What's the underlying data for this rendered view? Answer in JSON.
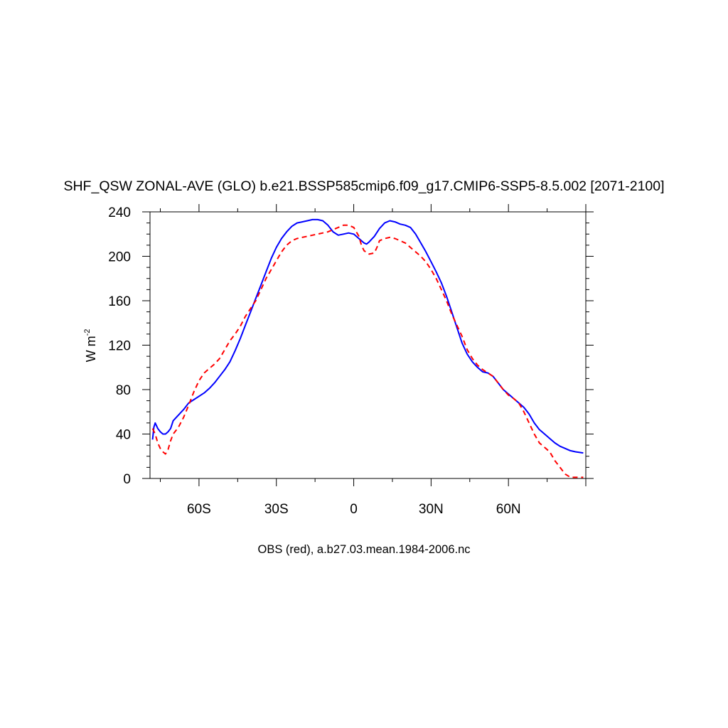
{
  "chart_data": {
    "type": "line",
    "title": "SHF_QSW ZONAL-AVE (GLO) b.e21.BSSP585cmip6.f09_g17.CMIP6-SSP5-8.5.002 [2071-2100]",
    "xlabel": "OBS (red), a.b27.03.mean.1984-2006.nc",
    "ylabel": "W m",
    "ylabel_superscript": "-2",
    "xlim": [
      -79,
      90
    ],
    "ylim": [
      0,
      240
    ],
    "x_ticks": [
      {
        "value": -60,
        "label": "60S"
      },
      {
        "value": -30,
        "label": "30S"
      },
      {
        "value": 0,
        "label": "0"
      },
      {
        "value": 30,
        "label": "30N"
      },
      {
        "value": 60,
        "label": "60N"
      }
    ],
    "y_ticks": [
      0,
      40,
      80,
      120,
      160,
      200,
      240
    ],
    "grid": false,
    "series": [
      {
        "color": "#0000ff",
        "dash": "solid",
        "points": [
          [
            -78,
            35
          ],
          [
            -77.5,
            46
          ],
          [
            -77,
            50
          ],
          [
            -76,
            45
          ],
          [
            -75,
            42
          ],
          [
            -74,
            40
          ],
          [
            -73,
            40
          ],
          [
            -72,
            42
          ],
          [
            -71,
            45
          ],
          [
            -70,
            52
          ],
          [
            -68,
            57
          ],
          [
            -66,
            62
          ],
          [
            -64,
            68
          ],
          [
            -62,
            71
          ],
          [
            -60,
            74
          ],
          [
            -58,
            77
          ],
          [
            -56,
            81
          ],
          [
            -54,
            86
          ],
          [
            -52,
            92
          ],
          [
            -50,
            98
          ],
          [
            -48,
            105
          ],
          [
            -46,
            115
          ],
          [
            -44,
            126
          ],
          [
            -42,
            138
          ],
          [
            -40,
            150
          ],
          [
            -38,
            162
          ],
          [
            -36,
            174
          ],
          [
            -34,
            186
          ],
          [
            -32,
            198
          ],
          [
            -30,
            208
          ],
          [
            -28,
            216
          ],
          [
            -26,
            222
          ],
          [
            -24,
            227
          ],
          [
            -22,
            230
          ],
          [
            -20,
            231
          ],
          [
            -18,
            232
          ],
          [
            -16,
            233
          ],
          [
            -14,
            233
          ],
          [
            -12,
            232
          ],
          [
            -10,
            228
          ],
          [
            -8,
            222
          ],
          [
            -6,
            219
          ],
          [
            -4,
            220
          ],
          [
            -2,
            221
          ],
          [
            0,
            220
          ],
          [
            2,
            216
          ],
          [
            4,
            212
          ],
          [
            5,
            211
          ],
          [
            6,
            213
          ],
          [
            8,
            218
          ],
          [
            10,
            225
          ],
          [
            12,
            230
          ],
          [
            14,
            232
          ],
          [
            16,
            231
          ],
          [
            18,
            229
          ],
          [
            20,
            228
          ],
          [
            22,
            226
          ],
          [
            24,
            220
          ],
          [
            26,
            212
          ],
          [
            28,
            204
          ],
          [
            30,
            195
          ],
          [
            32,
            186
          ],
          [
            34,
            176
          ],
          [
            36,
            164
          ],
          [
            38,
            150
          ],
          [
            40,
            136
          ],
          [
            42,
            122
          ],
          [
            44,
            112
          ],
          [
            46,
            105
          ],
          [
            48,
            100
          ],
          [
            50,
            96
          ],
          [
            52,
            95
          ],
          [
            54,
            92
          ],
          [
            56,
            86
          ],
          [
            58,
            80
          ],
          [
            60,
            76
          ],
          [
            62,
            72
          ],
          [
            64,
            68
          ],
          [
            66,
            64
          ],
          [
            68,
            58
          ],
          [
            70,
            50
          ],
          [
            72,
            44
          ],
          [
            74,
            40
          ],
          [
            76,
            36
          ],
          [
            78,
            32
          ],
          [
            80,
            29
          ],
          [
            82,
            27
          ],
          [
            84,
            25
          ],
          [
            86,
            24
          ],
          [
            89,
            23
          ]
        ]
      },
      {
        "color": "#ff0000",
        "dash": "dashed",
        "points": [
          [
            -78,
            45
          ],
          [
            -77,
            40
          ],
          [
            -76,
            32
          ],
          [
            -75,
            27
          ],
          [
            -74,
            24
          ],
          [
            -73,
            22
          ],
          [
            -72,
            26
          ],
          [
            -71,
            34
          ],
          [
            -70,
            40
          ],
          [
            -68,
            46
          ],
          [
            -66,
            55
          ],
          [
            -64,
            66
          ],
          [
            -62,
            78
          ],
          [
            -60,
            88
          ],
          [
            -58,
            95
          ],
          [
            -56,
            99
          ],
          [
            -54,
            103
          ],
          [
            -52,
            108
          ],
          [
            -50,
            116
          ],
          [
            -48,
            124
          ],
          [
            -46,
            130
          ],
          [
            -44,
            137
          ],
          [
            -42,
            146
          ],
          [
            -40,
            153
          ],
          [
            -38,
            160
          ],
          [
            -36,
            170
          ],
          [
            -34,
            180
          ],
          [
            -32,
            188
          ],
          [
            -30,
            196
          ],
          [
            -28,
            204
          ],
          [
            -26,
            210
          ],
          [
            -24,
            214
          ],
          [
            -22,
            216
          ],
          [
            -20,
            217
          ],
          [
            -18,
            218
          ],
          [
            -16,
            219
          ],
          [
            -14,
            220
          ],
          [
            -12,
            221
          ],
          [
            -10,
            222
          ],
          [
            -8,
            224
          ],
          [
            -6,
            226
          ],
          [
            -4,
            228
          ],
          [
            -2,
            228
          ],
          [
            0,
            226
          ],
          [
            2,
            218
          ],
          [
            3,
            210
          ],
          [
            4,
            205
          ],
          [
            6,
            202
          ],
          [
            8,
            203
          ],
          [
            9,
            208
          ],
          [
            10,
            214
          ],
          [
            12,
            216
          ],
          [
            14,
            217
          ],
          [
            16,
            216
          ],
          [
            18,
            214
          ],
          [
            20,
            212
          ],
          [
            22,
            208
          ],
          [
            24,
            204
          ],
          [
            26,
            200
          ],
          [
            28,
            195
          ],
          [
            30,
            188
          ],
          [
            32,
            180
          ],
          [
            34,
            170
          ],
          [
            36,
            160
          ],
          [
            38,
            148
          ],
          [
            40,
            138
          ],
          [
            42,
            128
          ],
          [
            44,
            116
          ],
          [
            46,
            108
          ],
          [
            48,
            102
          ],
          [
            50,
            98
          ],
          [
            52,
            95
          ],
          [
            54,
            92
          ],
          [
            56,
            86
          ],
          [
            58,
            80
          ],
          [
            60,
            75
          ],
          [
            62,
            72
          ],
          [
            64,
            68
          ],
          [
            66,
            60
          ],
          [
            68,
            50
          ],
          [
            70,
            40
          ],
          [
            72,
            32
          ],
          [
            74,
            28
          ],
          [
            76,
            24
          ],
          [
            78,
            16
          ],
          [
            80,
            10
          ],
          [
            82,
            4
          ],
          [
            84,
            1
          ],
          [
            86,
            1
          ],
          [
            89,
            1
          ]
        ]
      }
    ]
  }
}
